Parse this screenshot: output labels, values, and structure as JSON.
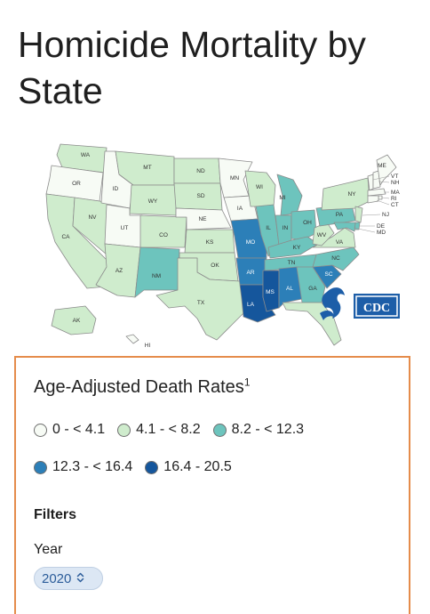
{
  "page": {
    "title": "Homicide Mortality by State"
  },
  "colors": {
    "bin0": "#f7fbf5",
    "bin1": "#cfeccd",
    "bin2": "#6dc4bd",
    "bin3": "#2c7fb8",
    "bin4": "#15569c",
    "stroke": "#8c8c8c",
    "panel_border": "#e58c4b"
  },
  "map": {
    "states": {
      "WA": 1,
      "OR": 0,
      "CA": 1,
      "NV": 1,
      "ID": 0,
      "MT": 1,
      "WY": 1,
      "UT": 0,
      "AZ": 1,
      "CO": 1,
      "NM": 2,
      "ND": 1,
      "SD": 1,
      "NE": 0,
      "KS": 1,
      "OK": 1,
      "TX": 1,
      "MN": 0,
      "IA": 0,
      "MO": 3,
      "AR": 3,
      "LA": 4,
      "WI": 1,
      "IL": 2,
      "MI": 2,
      "IN": 2,
      "OH": 2,
      "KY": 2,
      "TN": 2,
      "MS": 4,
      "AL": 3,
      "GA": 2,
      "FL": 1,
      "SC": 3,
      "NC": 2,
      "VA": 1,
      "WV": 1,
      "PA": 2,
      "NY": 1,
      "VT": 0,
      "NH": 0,
      "ME": 0,
      "MA": 0,
      "RI": 0,
      "CT": 0,
      "NJ": 1,
      "DE": 2,
      "MD": 2,
      "AK": 1,
      "HI": 0
    },
    "labels": [
      "WA",
      "OR",
      "CA",
      "NV",
      "ID",
      "MT",
      "WY",
      "UT",
      "AZ",
      "CO",
      "NM",
      "ND",
      "SD",
      "NE",
      "KS",
      "OK",
      "TX",
      "MN",
      "IA",
      "MO",
      "AR",
      "LA",
      "WI",
      "IL",
      "MI",
      "IN",
      "OH",
      "KY",
      "TN",
      "MS",
      "AL",
      "GA",
      "SC",
      "NC",
      "VA",
      "WV",
      "PA",
      "NY",
      "ME",
      "VT",
      "NH",
      "MA",
      "RI",
      "CT",
      "NJ",
      "DE",
      "MD",
      "AK",
      "HI"
    ],
    "logo_text": "CDC"
  },
  "legend": {
    "title": "Age-Adjusted Death Rates",
    "footnote": "1",
    "bins": [
      {
        "label": "0 - < 4.1",
        "color": "#f7fbf5"
      },
      {
        "label": "4.1 - < 8.2",
        "color": "#cfeccd"
      },
      {
        "label": "8.2 - < 12.3",
        "color": "#6dc4bd"
      },
      {
        "label": "12.3 - < 16.4",
        "color": "#2c7fb8"
      },
      {
        "label": "16.4 - 20.5",
        "color": "#15569c"
      }
    ]
  },
  "filters": {
    "heading": "Filters",
    "year_label": "Year",
    "year_value": "2020"
  }
}
